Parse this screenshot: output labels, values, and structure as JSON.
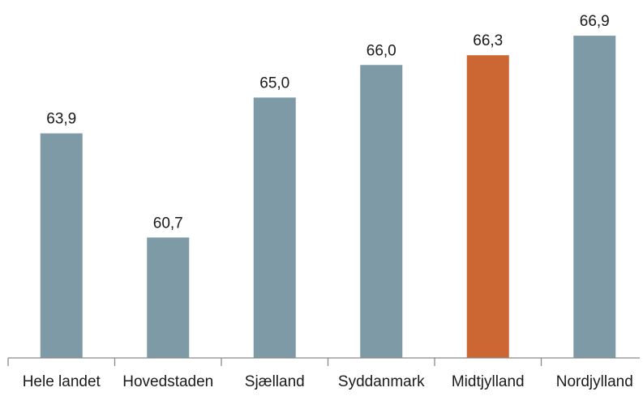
{
  "chart_data": {
    "type": "bar",
    "categories": [
      "Hele landet",
      "Hovedstaden",
      "Sjælland",
      "Syddanmark",
      "Midtjylland",
      "Nordjylland"
    ],
    "values": [
      63.9,
      60.7,
      65.0,
      66.0,
      66.3,
      66.9
    ],
    "value_labels": [
      "63,9",
      "60,7",
      "65,0",
      "66,0",
      "66,3",
      "66,9"
    ],
    "ylim": [
      57.0,
      67.4
    ],
    "grid": false,
    "legend": "none",
    "colors": {
      "default_bar": "#7e9aa6",
      "highlight_bar": "#cc6633",
      "axis": "#8a8a8a"
    },
    "highlight_index": 4
  }
}
